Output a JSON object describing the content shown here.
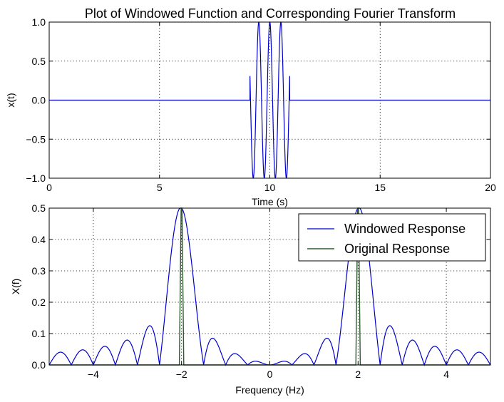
{
  "title": "Plot of Windowed Function and Corresponding Fourier Transform",
  "chart_data": [
    {
      "type": "line",
      "xlabel": "Time (s)",
      "ylabel": "x(t)",
      "xlim": [
        0,
        20
      ],
      "ylim": [
        -1.0,
        1.0
      ],
      "xticks": [
        "0",
        "5",
        "10",
        "15",
        "20"
      ],
      "yticks": [
        "1.0",
        "0.5",
        "0.0",
        "−0.5",
        "−1.0"
      ],
      "grid": true,
      "series": [
        {
          "color": "#0000cc",
          "description_of_signal": "",
          "x": [
            0,
            9.1,
            9.1,
            9.15,
            9.3,
            9.45,
            9.6,
            9.75,
            9.9,
            10.05,
            10.2,
            10.35,
            10.5,
            10.65,
            10.8,
            10.9,
            10.9,
            20
          ],
          "y": [
            0,
            0,
            -0.95,
            -0.4,
            1.0,
            -1.0,
            1.0,
            -1.0,
            1.0,
            -1.0,
            1.0,
            -1.0,
            1.0,
            -1.0,
            1.0,
            0.5,
            0,
            0
          ]
        }
      ]
    },
    {
      "type": "line",
      "xlabel": "Frequency (Hz)",
      "ylabel": "X(f)",
      "xlim": [
        -5,
        5
      ],
      "ylim": [
        0.0,
        0.5
      ],
      "xticks": [
        "−4",
        "−2",
        "0",
        "2",
        "4"
      ],
      "yticks": [
        "0.5",
        "0.4",
        "0.3",
        "0.2",
        "0.1",
        "0.0"
      ],
      "grid": true,
      "legend_position": "top-right",
      "series": [
        {
          "name": "Windowed Response",
          "color": "#0000cc",
          "centers": [
            -2,
            2
          ],
          "peak": 0.5,
          "lobe_width_hz": 0.5,
          "x_range": [
            -5,
            5
          ]
        },
        {
          "name": "Original Response",
          "color": "#2e5a2e",
          "spikes": [
            {
              "x": -2,
              "y": 0.5
            },
            {
              "x": 2,
              "y": 0.5
            }
          ]
        }
      ]
    }
  ]
}
